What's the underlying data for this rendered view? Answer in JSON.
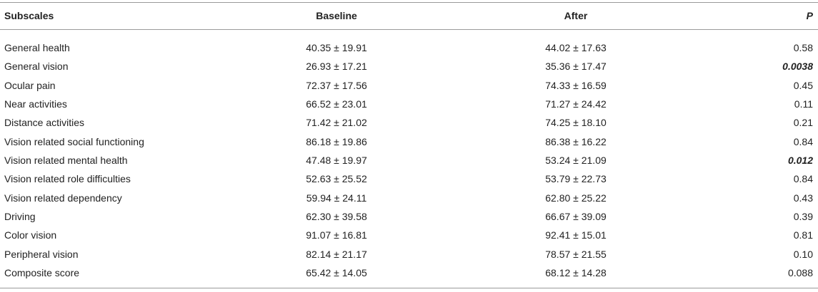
{
  "table": {
    "header": [
      "Subscales",
      "Baseline",
      "After",
      "P"
    ],
    "rows": [
      {
        "cells": [
          "General health",
          "40.35 ± 19.91",
          "44.02 ± 17.63",
          "0.58"
        ],
        "significant": false
      },
      {
        "cells": [
          "General vision",
          "26.93 ± 17.21",
          "35.36 ± 17.47",
          "0.0038"
        ],
        "significant": true
      },
      {
        "cells": [
          "Ocular pain",
          "72.37 ± 17.56",
          "74.33 ± 16.59",
          "0.45"
        ],
        "significant": false
      },
      {
        "cells": [
          "Near activities",
          "66.52 ± 23.01",
          "71.27 ± 24.42",
          "0.11"
        ],
        "significant": false
      },
      {
        "cells": [
          "Distance activities",
          "71.42 ± 21.02",
          "74.25 ± 18.10",
          "0.21"
        ],
        "significant": false
      },
      {
        "cells": [
          "Vision related social functioning",
          "86.18 ± 19.86",
          "86.38 ± 16.22",
          "0.84"
        ],
        "significant": false
      },
      {
        "cells": [
          "Vision related mental health",
          "47.48 ± 19.97",
          "53.24 ± 21.09",
          "0.012"
        ],
        "significant": true
      },
      {
        "cells": [
          "Vision related role difficulties",
          "52.63 ± 25.52",
          "53.79 ± 22.73",
          "0.84"
        ],
        "significant": false
      },
      {
        "cells": [
          "Vision related dependency",
          "59.94 ± 24.11",
          "62.80 ± 25.22",
          "0.43"
        ],
        "significant": false
      },
      {
        "cells": [
          "Driving",
          "62.30 ± 39.58",
          "66.67 ± 39.09",
          "0.39"
        ],
        "significant": false
      },
      {
        "cells": [
          "Color vision",
          "91.07 ± 16.81",
          "92.41 ± 15.01",
          "0.81"
        ],
        "significant": false
      },
      {
        "cells": [
          "Peripheral vision",
          "82.14 ± 21.17",
          "78.57 ± 21.55",
          "0.10"
        ],
        "significant": false
      },
      {
        "cells": [
          "Composite score",
          "65.42 ± 14.05",
          "68.12 ± 14.28",
          "0.088"
        ],
        "significant": false
      }
    ]
  }
}
